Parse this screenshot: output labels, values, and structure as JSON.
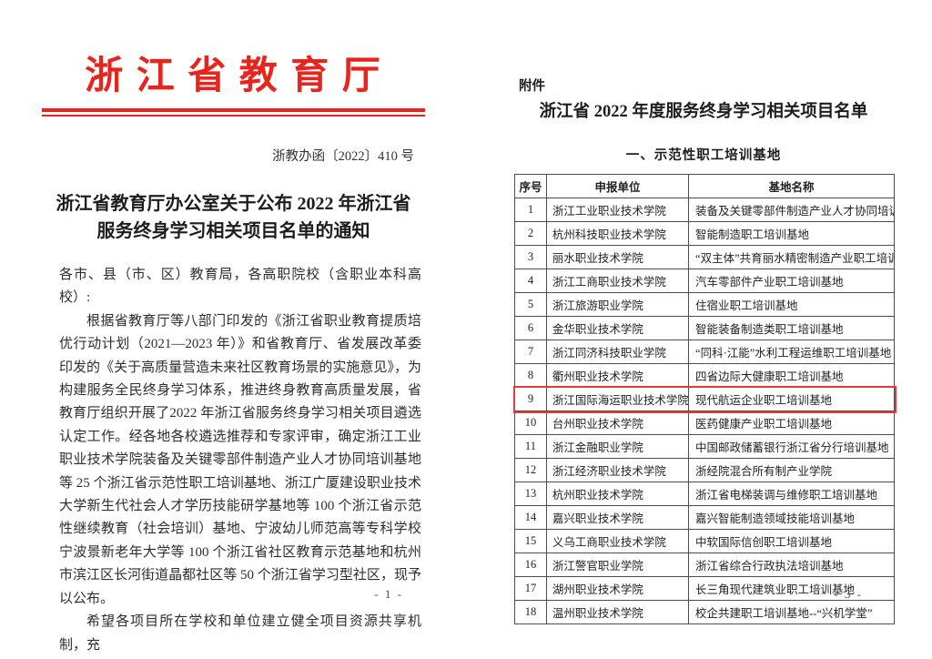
{
  "colors": {
    "accent_red": "#e8251c",
    "highlight_border": "#e23c38",
    "table_border": "#4d4d4d"
  },
  "page1": {
    "agency_header": "浙 江 省 教 育 厅",
    "doc_number": "浙教办函〔2022〕410 号",
    "title_line1": "浙江省教育厅办公室关于公布 2022 年浙江省",
    "title_line2": "服务终身学习相关项目名单的通知",
    "salutation": "各市、县（市、区）教育局，各高职院校（含职业本科高校）:",
    "paragraph1": "根据省教育厅等八部门印发的《浙江省职业教育提质培优行动计划（2021—2023 年）》和省教育厅、省发展改革委印发的《关于高质量营造未来社区教育场景的实施意见》，为构建服务全民终身学习体系，推进终身教育高质量发展，省教育厅组织开展了2022 年浙江省服务终身学习相关项目遴选认定工作。经各地各校遴选推荐和专家评审，确定浙江工业职业技术学院装备及关键零部件制造产业人才协同培训基地等 25 个浙江省示范性职工培训基地、浙江广厦建设职业技术大学新生代社会人才学历技能研学基地等 100 个浙江省示范性继续教育（社会培训）基地、宁波幼儿师范高等专科学校宁波景新老年大学等 100 个浙江省社区教育示范基地和杭州市滨江区长河街道晶都社区等 50 个浙江省学习型社区，现予以公布。",
    "paragraph2": "希望各项目所在学校和单位建立健全项目资源共享机制，充",
    "page_number": "- 1 -"
  },
  "page2": {
    "attachment_label": "附件",
    "title": "浙江省 2022 年度服务终身学习相关项目名单",
    "section_heading": "一、示范性职工培训基地",
    "table": {
      "headers": [
        "序号",
        "申报单位",
        "基地名称"
      ],
      "highlighted_row_index": 8,
      "rows": [
        [
          "1",
          "浙江工业职业技术学院",
          "装备及关键零部件制造产业人才协同培训基地"
        ],
        [
          "2",
          "杭州科技职业技术学院",
          "智能制造职工培训基地"
        ],
        [
          "3",
          "丽水职业技术学院",
          "“双主体”共育丽水精密制造产业职工培训基地"
        ],
        [
          "4",
          "浙江工商职业技术学院",
          "汽车零部件产业职工培训基地"
        ],
        [
          "5",
          "浙江旅游职业学院",
          "住宿业职工培训基地"
        ],
        [
          "6",
          "金华职业技术学院",
          "智能装备制造类职工培训基地"
        ],
        [
          "7",
          "浙江同济科技职业学院",
          "“同科·江能”水利工程运维职工培训基地"
        ],
        [
          "8",
          "衢州职业技术学院",
          "四省边际大健康职工培训基地"
        ],
        [
          "9",
          "浙江国际海运职业技术学院",
          "现代航运企业职工培训基地"
        ],
        [
          "10",
          "台州职业技术学院",
          "医药健康产业职工培训基地"
        ],
        [
          "11",
          "浙江金融职业学院",
          "中国邮政储蓄银行浙江省分行培训基地"
        ],
        [
          "12",
          "浙江经济职业技术学院",
          "浙经院混合所有制产业学院"
        ],
        [
          "13",
          "杭州职业技术学院",
          "浙江省电梯装调与维修职工培训基地"
        ],
        [
          "14",
          "嘉兴职业技术学院",
          "嘉兴智能制造领域技能培训基地"
        ],
        [
          "15",
          "义乌工商职业技术学院",
          "中软国际信创职工培训基地"
        ],
        [
          "16",
          "浙江警官职业学院",
          "浙江省综合行政执法培训基地"
        ],
        [
          "17",
          "湖州职业技术学院",
          "长三角现代建筑业职工培训基地"
        ],
        [
          "18",
          "温州职业技术学院",
          "校企共建职工培训基地--“兴机学堂”"
        ]
      ]
    },
    "page_number": "- 3 -"
  }
}
